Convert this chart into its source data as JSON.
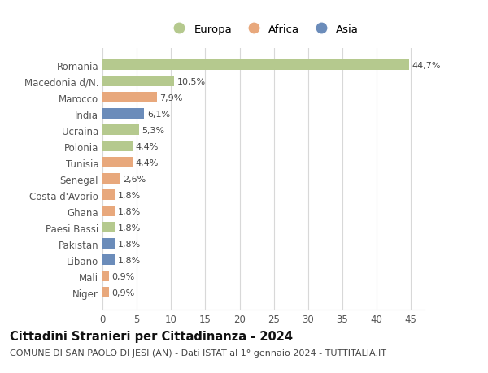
{
  "categories": [
    "Niger",
    "Mali",
    "Libano",
    "Pakistan",
    "Paesi Bassi",
    "Ghana",
    "Costa d'Avorio",
    "Senegal",
    "Tunisia",
    "Polonia",
    "Ucraina",
    "India",
    "Marocco",
    "Macedonia d/N.",
    "Romania"
  ],
  "values": [
    0.9,
    0.9,
    1.8,
    1.8,
    1.8,
    1.8,
    1.8,
    2.6,
    4.4,
    4.4,
    5.3,
    6.1,
    7.9,
    10.5,
    44.7
  ],
  "labels": [
    "0,9%",
    "0,9%",
    "1,8%",
    "1,8%",
    "1,8%",
    "1,8%",
    "1,8%",
    "2,6%",
    "4,4%",
    "4,4%",
    "5,3%",
    "6,1%",
    "7,9%",
    "10,5%",
    "44,7%"
  ],
  "continents": [
    "Africa",
    "Africa",
    "Asia",
    "Asia",
    "Europa",
    "Africa",
    "Africa",
    "Africa",
    "Africa",
    "Europa",
    "Europa",
    "Asia",
    "Africa",
    "Europa",
    "Europa"
  ],
  "colors": {
    "Europa": "#b5c98e",
    "Africa": "#e8a87c",
    "Asia": "#6b8cba"
  },
  "legend_labels": [
    "Europa",
    "Africa",
    "Asia"
  ],
  "title1": "Cittadini Stranieri per Cittadinanza - 2024",
  "title2": "COMUNE DI SAN PAOLO DI JESI (AN) - Dati ISTAT al 1° gennaio 2024 - TUTTITALIA.IT",
  "xlim": [
    0,
    47
  ],
  "xticks": [
    0,
    5,
    10,
    15,
    20,
    25,
    30,
    35,
    40,
    45
  ],
  "background_color": "#ffffff",
  "grid_color": "#d8d8d8",
  "bar_height": 0.65,
  "label_fontsize": 8.0,
  "tick_fontsize": 8.5,
  "title1_fontsize": 10.5,
  "title2_fontsize": 8.0
}
